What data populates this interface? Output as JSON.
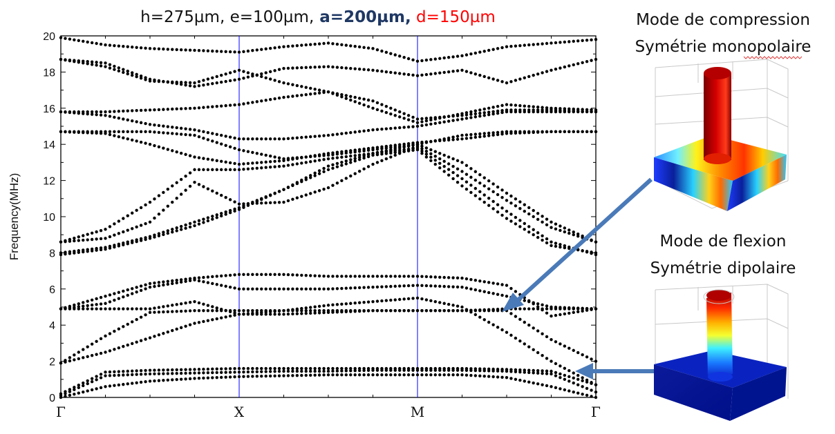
{
  "title": {
    "part1": "h=275µm, e=100µm,",
    "part2": " a=200µm,",
    "part3": " d=150µm",
    "color1": "#111111",
    "color2": "#1f3864",
    "color3": "#ff0000"
  },
  "chart_data": {
    "type": "scatter",
    "title": "h=275µm, e=100µm, a=200µm, d=150µm",
    "ylabel": "Frequency(MHz)",
    "xlabel": "",
    "ylim": [
      0,
      20
    ],
    "yticks": [
      "0",
      "2",
      "4",
      "6",
      "8",
      "10",
      "12",
      "14",
      "16",
      "18",
      "20"
    ],
    "xticks": [
      "Γ",
      "X",
      "M",
      "Γ"
    ],
    "x_segments": [
      "Γ-X",
      "X-M",
      "M-Γ"
    ],
    "marker_color": "#000000",
    "divider_color": "#0000ff",
    "bands": [
      {
        "name": "band1",
        "x": [
          0,
          0.25,
          0.5,
          0.75,
          1,
          1.25,
          1.5,
          1.75,
          2,
          2.25,
          2.5,
          2.75,
          3
        ],
        "y": [
          0,
          0.6,
          0.9,
          1.05,
          1.15,
          1.2,
          1.25,
          1.25,
          1.25,
          1.25,
          1.1,
          0.6,
          0
        ]
      },
      {
        "name": "band2",
        "x": [
          0,
          0.25,
          0.5,
          0.75,
          1,
          1.25,
          1.5,
          1.75,
          2,
          2.25,
          2.5,
          2.75,
          3
        ],
        "y": [
          0.1,
          1.2,
          1.3,
          1.35,
          1.4,
          1.45,
          1.45,
          1.5,
          1.5,
          1.5,
          1.45,
          1.3,
          0.3
        ]
      },
      {
        "name": "band3",
        "x": [
          0,
          0.25,
          0.5,
          0.75,
          1,
          1.25,
          1.5,
          1.75,
          2,
          2.25,
          2.5,
          2.75,
          3
        ],
        "y": [
          0.2,
          1.4,
          1.5,
          1.55,
          1.6,
          1.6,
          1.6,
          1.6,
          1.6,
          1.6,
          1.55,
          1.45,
          0.7
        ]
      },
      {
        "name": "band4",
        "x": [
          0,
          0.25,
          0.5,
          0.75,
          1,
          1.25,
          1.5,
          1.75,
          2,
          2.25,
          2.5,
          2.75,
          3
        ],
        "y": [
          1.9,
          2.5,
          3.3,
          4.1,
          4.6,
          4.8,
          5.1,
          5.3,
          5.5,
          5.0,
          3.6,
          2.0,
          0.7
        ]
      },
      {
        "name": "band5",
        "x": [
          0,
          0.25,
          0.5,
          0.75,
          1,
          1.25,
          1.5,
          1.75,
          2,
          2.25,
          2.5,
          2.75,
          3
        ],
        "y": [
          1.9,
          3.4,
          4.7,
          4.8,
          4.8,
          4.8,
          4.8,
          4.8,
          4.8,
          4.8,
          4.8,
          3.2,
          2.0
        ]
      },
      {
        "name": "band6",
        "x": [
          0,
          0.25,
          0.5,
          0.75,
          1,
          1.25,
          1.5,
          1.75,
          2,
          2.25,
          2.5,
          2.75,
          3
        ],
        "y": [
          4.9,
          4.9,
          4.9,
          5.3,
          4.6,
          4.6,
          4.7,
          4.8,
          4.8,
          4.8,
          4.9,
          4.9,
          4.9
        ]
      },
      {
        "name": "band7",
        "x": [
          0,
          0.25,
          0.5,
          0.75,
          1,
          1.25,
          1.5,
          1.75,
          2,
          2.25,
          2.5,
          2.75,
          3
        ],
        "y": [
          4.9,
          5.2,
          6.1,
          6.5,
          6.0,
          6.0,
          6.0,
          6.1,
          6.2,
          6.1,
          5.6,
          5.0,
          4.9
        ]
      },
      {
        "name": "band8",
        "x": [
          0,
          0.25,
          0.5,
          0.75,
          1,
          1.25,
          1.5,
          1.75,
          2,
          2.25,
          2.5,
          2.75,
          3
        ],
        "y": [
          4.9,
          5.6,
          6.3,
          6.6,
          6.8,
          6.8,
          6.7,
          6.7,
          6.7,
          6.6,
          6.2,
          4.5,
          4.9
        ]
      },
      {
        "name": "band9",
        "x": [
          0,
          0.25,
          0.5,
          0.75,
          1,
          1.25,
          1.5,
          1.75,
          2,
          2.25,
          2.5,
          2.75,
          3
        ],
        "y": [
          7.9,
          8.2,
          8.8,
          9.5,
          10.4,
          11.5,
          12.8,
          13.5,
          13.8,
          12.1,
          10.3,
          8.6,
          7.9
        ]
      },
      {
        "name": "band10",
        "x": [
          0,
          0.25,
          0.5,
          0.75,
          1,
          1.25,
          1.5,
          1.75,
          2,
          2.25,
          2.5,
          2.75,
          3
        ],
        "y": [
          8.0,
          8.3,
          8.9,
          9.7,
          10.5,
          11.5,
          12.6,
          13.4,
          13.7,
          11.7,
          9.9,
          8.4,
          8.0
        ]
      },
      {
        "name": "band11",
        "x": [
          0,
          0.25,
          0.5,
          0.75,
          1,
          1.25,
          1.5,
          1.75,
          2,
          2.25,
          2.5,
          2.75,
          3
        ],
        "y": [
          8.6,
          8.8,
          9.7,
          11.9,
          10.7,
          10.8,
          11.6,
          12.9,
          13.9,
          12.5,
          10.9,
          9.4,
          8.6
        ]
      },
      {
        "name": "band12",
        "x": [
          0,
          0.25,
          0.5,
          0.75,
          1,
          1.25,
          1.5,
          1.75,
          2,
          2.25,
          2.5,
          2.75,
          3
        ],
        "y": [
          8.6,
          9.3,
          10.8,
          12.6,
          12.6,
          12.8,
          13.2,
          13.5,
          14.0,
          13.0,
          11.3,
          9.7,
          8.6
        ]
      },
      {
        "name": "band13",
        "x": [
          0,
          0.25,
          0.5,
          0.75,
          1,
          1.25,
          1.5,
          1.75,
          2,
          2.25,
          2.5,
          2.75,
          3
        ],
        "y": [
          14.7,
          14.6,
          14.0,
          13.3,
          12.9,
          13.1,
          13.5,
          13.8,
          14.1,
          14.3,
          14.6,
          14.7,
          14.7
        ]
      },
      {
        "name": "band14",
        "x": [
          0,
          0.25,
          0.5,
          0.75,
          1,
          1.25,
          1.5,
          1.75,
          2,
          2.25,
          2.5,
          2.75,
          3
        ],
        "y": [
          14.7,
          14.7,
          14.7,
          14.5,
          13.7,
          13.2,
          13.4,
          13.7,
          14.0,
          14.5,
          14.7,
          14.7,
          14.7
        ]
      },
      {
        "name": "band15",
        "x": [
          0,
          0.25,
          0.5,
          0.75,
          1,
          1.25,
          1.5,
          1.75,
          2,
          2.25,
          2.5,
          2.75,
          3
        ],
        "y": [
          15.8,
          15.6,
          15.1,
          14.8,
          14.3,
          14.3,
          14.5,
          14.8,
          15.0,
          15.4,
          15.8,
          15.8,
          15.8
        ]
      },
      {
        "name": "band16",
        "x": [
          0,
          0.25,
          0.5,
          0.75,
          1,
          1.25,
          1.5,
          1.75,
          2,
          2.25,
          2.5,
          2.75,
          3
        ],
        "y": [
          15.8,
          15.8,
          15.9,
          16.0,
          16.2,
          16.6,
          16.9,
          16.4,
          15.4,
          15.6,
          15.9,
          15.9,
          15.8
        ]
      },
      {
        "name": "band17",
        "x": [
          0,
          0.25,
          0.5,
          0.75,
          1,
          1.25,
          1.5,
          1.75,
          2,
          2.25,
          2.5,
          2.75,
          3
        ],
        "y": [
          18.7,
          18.3,
          17.5,
          17.4,
          18.1,
          17.4,
          16.9,
          16.0,
          15.2,
          15.7,
          16.2,
          16.0,
          15.9
        ]
      },
      {
        "name": "band18",
        "x": [
          0,
          0.25,
          0.5,
          0.75,
          1,
          1.25,
          1.5,
          1.75,
          2,
          2.25,
          2.5,
          2.75,
          3
        ],
        "y": [
          18.7,
          18.5,
          17.6,
          17.2,
          17.6,
          18.2,
          18.3,
          18.1,
          17.8,
          18.1,
          17.4,
          18.1,
          18.7
        ]
      },
      {
        "name": "band19",
        "x": [
          0,
          0.25,
          0.5,
          0.75,
          1,
          1.25,
          1.5,
          1.75,
          2,
          2.25,
          2.5,
          2.75,
          3
        ],
        "y": [
          19.9,
          19.5,
          19.3,
          19.2,
          19.1,
          19.4,
          19.6,
          19.3,
          18.6,
          18.9,
          19.4,
          19.6,
          19.8
        ]
      }
    ]
  },
  "side": {
    "compression_title": "Mode de compression",
    "compression_subtitle": "Symétrie monopolaire",
    "flexion_title": "Mode de flexion",
    "flexion_subtitle": "Symétrie dipolaire",
    "arrow_color": "#4a7ab8"
  }
}
